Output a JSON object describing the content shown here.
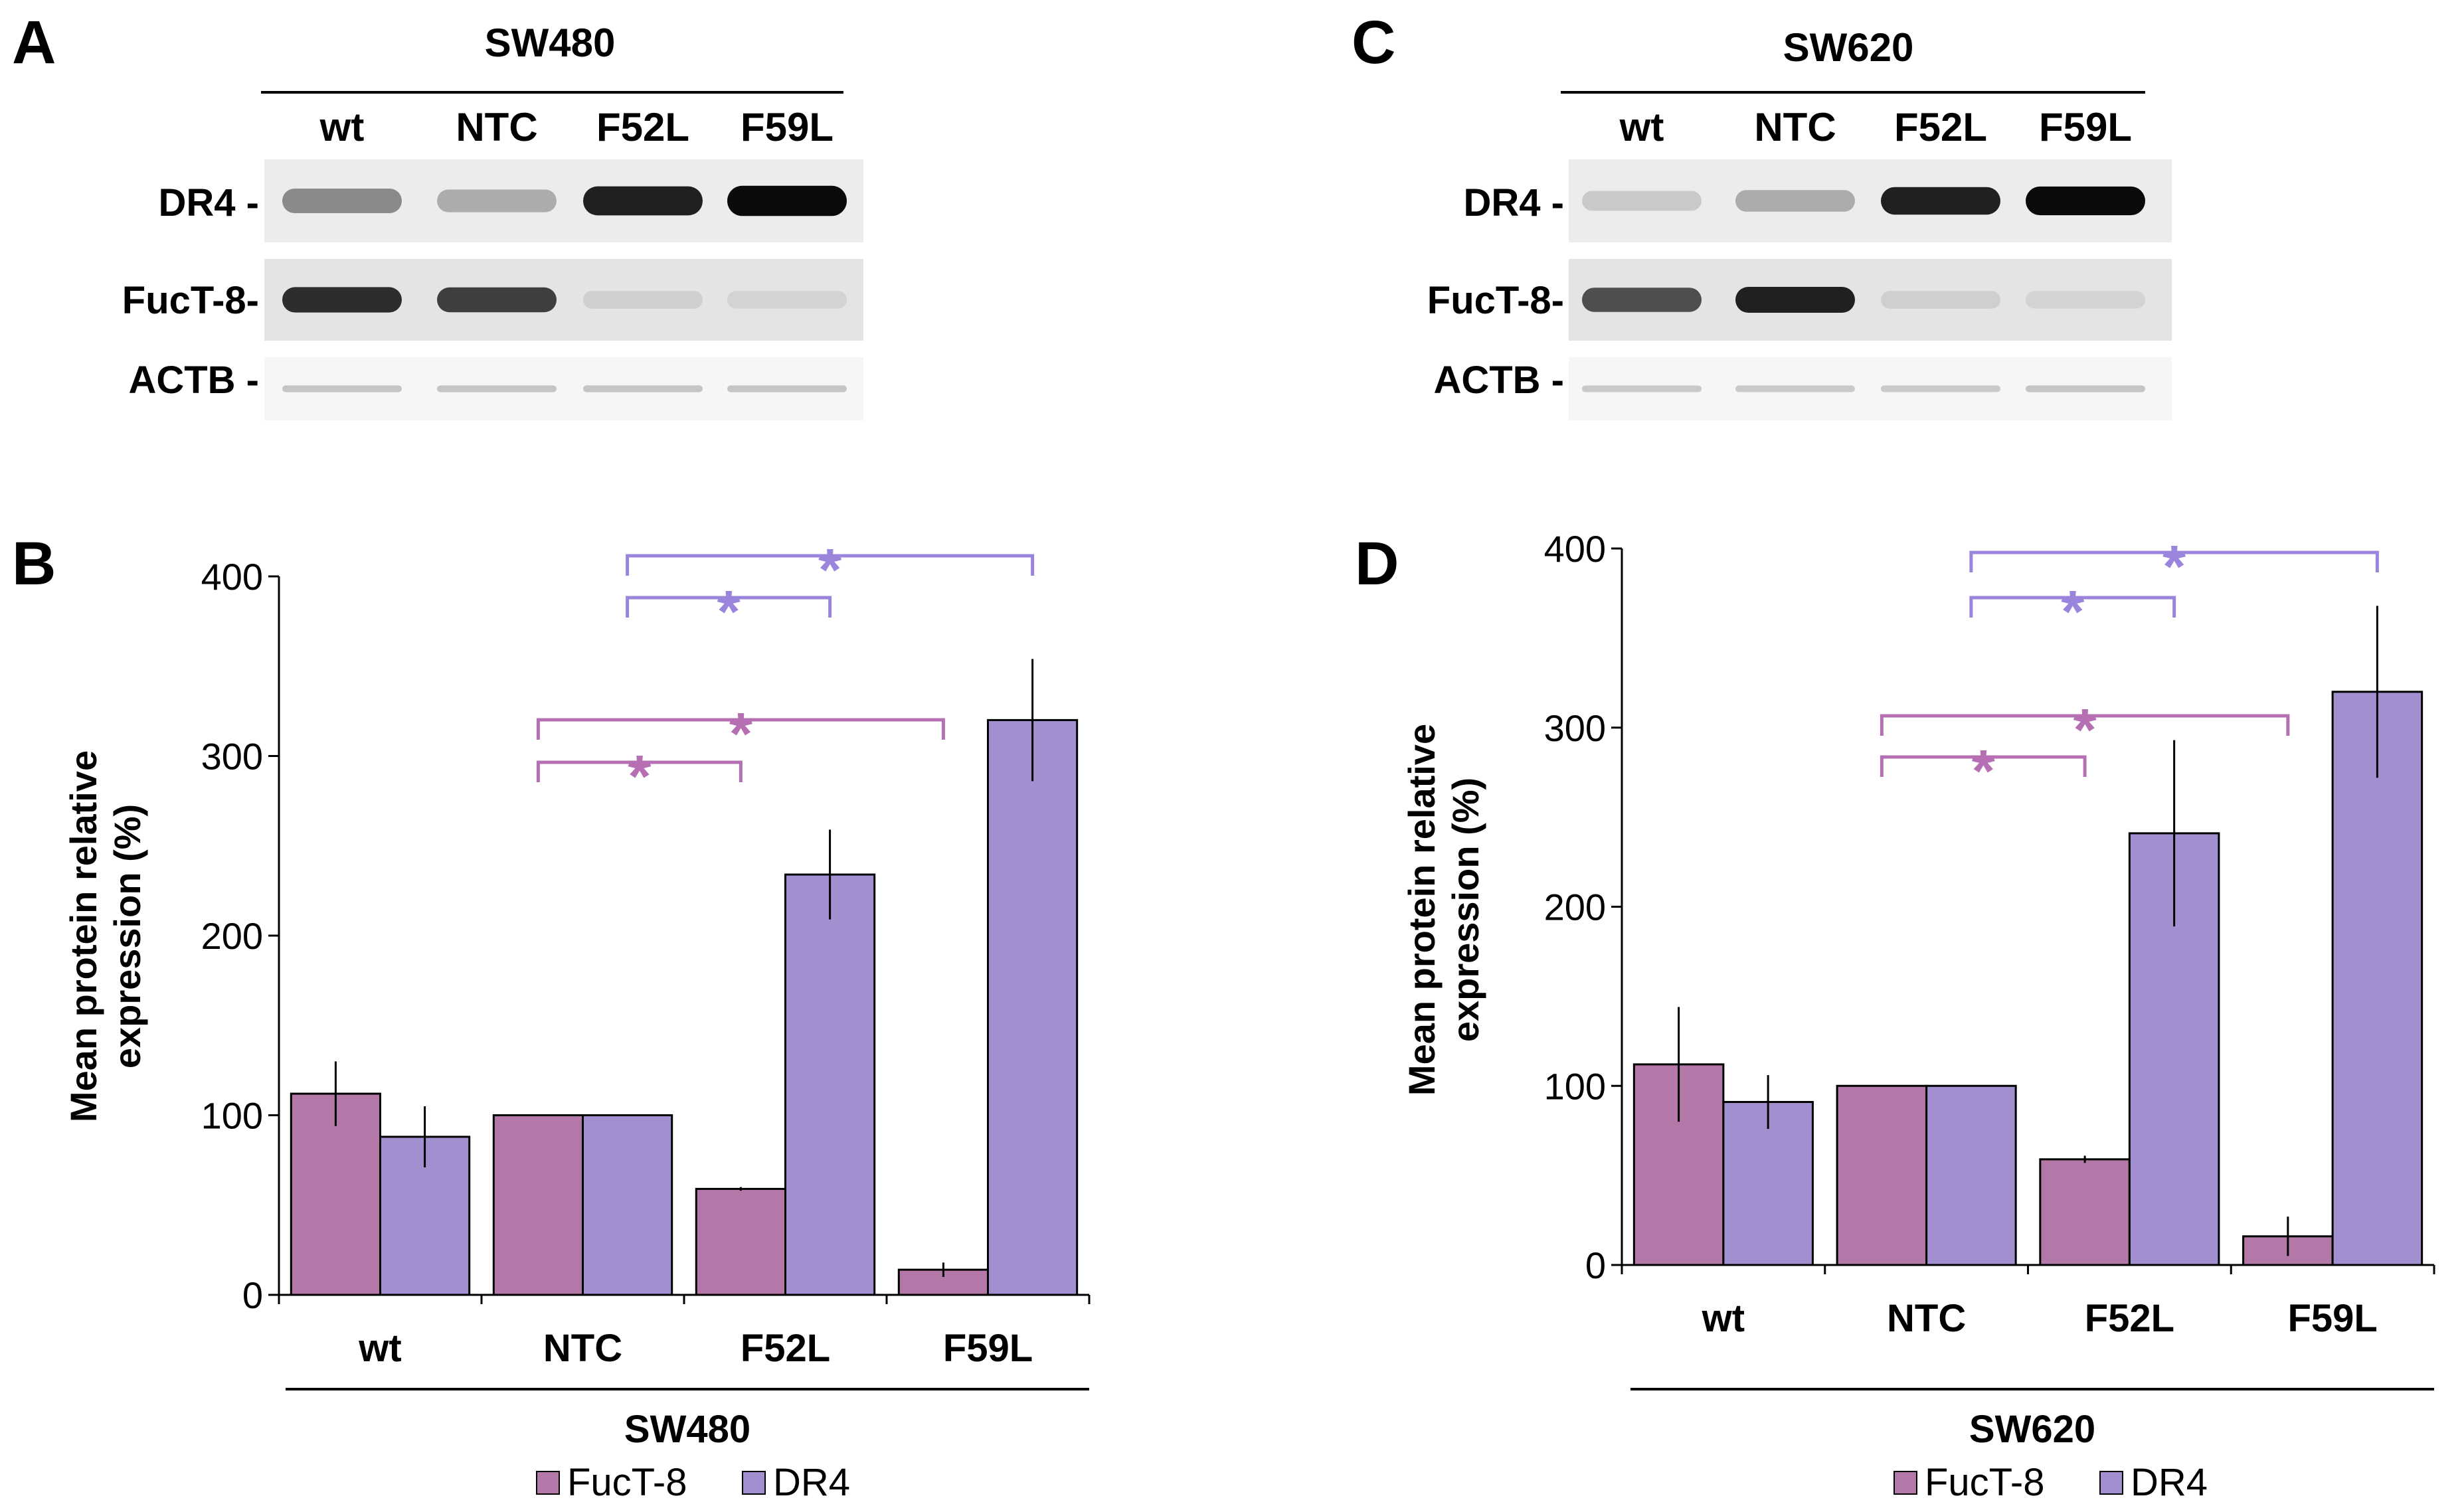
{
  "colors": {
    "fuct8": "#b377a8",
    "dr4": "#a28fd0",
    "star_fuct8": "#b56fb2",
    "star_dr4": "#9b85dc"
  },
  "panels": {
    "A": {
      "letter": "A",
      "title": "SW480",
      "lanes": [
        "wt",
        "NTC",
        "F52L",
        "F59L"
      ],
      "rows": [
        {
          "label": "DR4 -",
          "intensity": [
            0.55,
            0.4,
            0.9,
            1.0
          ]
        },
        {
          "label": "FucT-8-",
          "intensity": [
            0.85,
            0.8,
            0.18,
            0.15
          ]
        },
        {
          "label": "ACTB -",
          "intensity": [
            0.3,
            0.3,
            0.3,
            0.3
          ]
        }
      ]
    },
    "C": {
      "letter": "C",
      "title": "SW620",
      "lanes": [
        "wt",
        "NTC",
        "F52L",
        "F59L"
      ],
      "rows": [
        {
          "label": "DR4 -",
          "intensity": [
            0.25,
            0.4,
            0.9,
            1.0
          ]
        },
        {
          "label": "FucT-8-",
          "intensity": [
            0.75,
            0.9,
            0.18,
            0.15
          ]
        },
        {
          "label": "ACTB -",
          "intensity": [
            0.28,
            0.28,
            0.28,
            0.3
          ]
        }
      ]
    }
  },
  "chart_data": [
    {
      "panel": "B",
      "letter": "B",
      "type": "bar",
      "categories": [
        "wt",
        "NTC",
        "F52L",
        "F59L"
      ],
      "group_label": "SW480",
      "ylabel": "Mean protein relative expression (%)",
      "ylim": [
        0,
        400
      ],
      "yticks": [
        0,
        100,
        200,
        300,
        400
      ],
      "grid": false,
      "legend_position": "bottom",
      "series": [
        {
          "name": "FucT-8",
          "values": [
            112,
            100,
            59,
            14
          ],
          "errors": [
            18,
            0,
            1,
            4
          ]
        },
        {
          "name": "DR4",
          "values": [
            88,
            100,
            234,
            320
          ],
          "errors": [
            17,
            0,
            25,
            34
          ]
        }
      ],
      "significance": [
        {
          "series": "DR4",
          "from": "NTC",
          "to": "F52L",
          "label": "*"
        },
        {
          "series": "DR4",
          "from": "NTC",
          "to": "F59L",
          "label": "*"
        },
        {
          "series": "FucT-8",
          "from": "NTC",
          "to": "F52L",
          "label": "*"
        },
        {
          "series": "FucT-8",
          "from": "NTC",
          "to": "F59L",
          "label": "*"
        }
      ]
    },
    {
      "panel": "D",
      "letter": "D",
      "type": "bar",
      "categories": [
        "wt",
        "NTC",
        "F52L",
        "F59L"
      ],
      "group_label": "SW620",
      "ylabel": "Mean protein relative expression (%)",
      "ylim": [
        0,
        400
      ],
      "yticks": [
        0,
        100,
        200,
        300,
        400
      ],
      "grid": false,
      "legend_position": "bottom",
      "series": [
        {
          "name": "FucT-8",
          "values": [
            112,
            100,
            59,
            16
          ],
          "errors": [
            32,
            0,
            2,
            11
          ]
        },
        {
          "name": "DR4",
          "values": [
            91,
            100,
            241,
            320
          ],
          "errors": [
            15,
            0,
            52,
            48
          ]
        }
      ],
      "significance": [
        {
          "series": "DR4",
          "from": "NTC",
          "to": "F52L",
          "label": "*"
        },
        {
          "series": "DR4",
          "from": "NTC",
          "to": "F59L",
          "label": "*"
        },
        {
          "series": "FucT-8",
          "from": "NTC",
          "to": "F52L",
          "label": "*"
        },
        {
          "series": "FucT-8",
          "from": "NTC",
          "to": "F59L",
          "label": "*"
        }
      ]
    }
  ]
}
